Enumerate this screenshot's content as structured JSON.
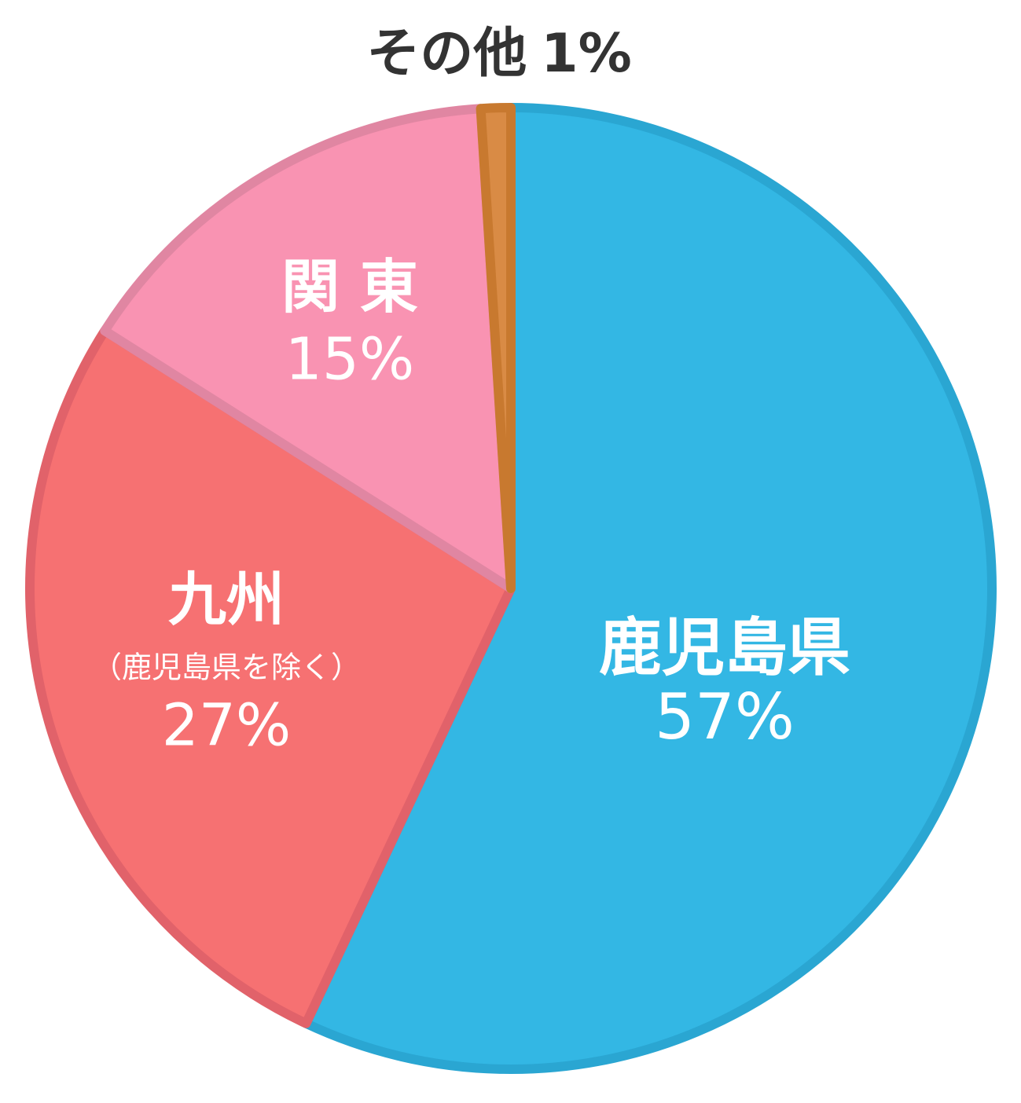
{
  "chart_data": {
    "type": "pie",
    "categories": [
      "鹿児島県",
      "九州",
      "関 東",
      "その他"
    ],
    "sublabels": [
      null,
      "（鹿児島県を除く）",
      null,
      null
    ],
    "values": [
      57,
      27,
      15,
      1
    ],
    "value_labels": [
      "57%",
      "27%",
      "15%",
      "1%"
    ],
    "colors": [
      "#33b7e4",
      "#f67172",
      "#f993b2",
      "#d98b45"
    ],
    "stroke_colors": [
      "#2aa6d2",
      "#e1626a",
      "#e086a2",
      "#c8792f"
    ]
  }
}
